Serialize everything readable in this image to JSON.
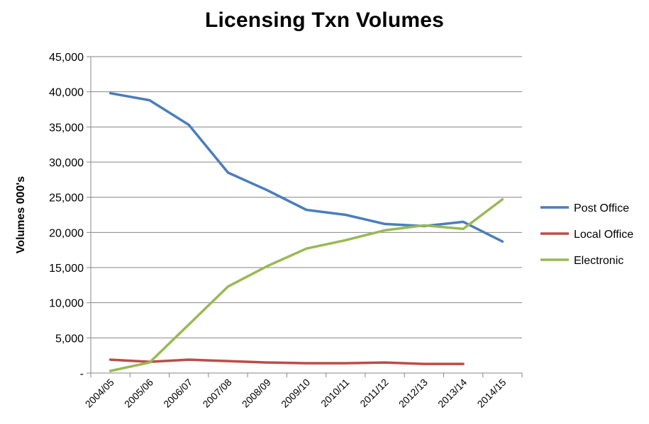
{
  "chart_data": {
    "type": "line",
    "title": "Licensing Txn Volumes",
    "xlabel": "",
    "ylabel": "Volumes 000's",
    "ylim": [
      0,
      45000
    ],
    "yticks": [
      {
        "value": 0,
        "label": "-"
      },
      {
        "value": 5000,
        "label": "5,000"
      },
      {
        "value": 10000,
        "label": "10,000"
      },
      {
        "value": 15000,
        "label": "15,000"
      },
      {
        "value": 20000,
        "label": "20,000"
      },
      {
        "value": 25000,
        "label": "25,000"
      },
      {
        "value": 30000,
        "label": "30,000"
      },
      {
        "value": 35000,
        "label": "35,000"
      },
      {
        "value": 40000,
        "label": "40,000"
      },
      {
        "value": 45000,
        "label": "45,000"
      }
    ],
    "categories": [
      "2004/05",
      "2005/06",
      "2006/07",
      "2007/08",
      "2008/09",
      "2009/10",
      "2010/11",
      "2011/12",
      "2012/13",
      "2013/14",
      "2014/15"
    ],
    "grid": true,
    "legend_position": "right",
    "series": [
      {
        "name": "Post Office",
        "color": "#4a7ebb",
        "values": [
          39800,
          38800,
          35300,
          28500,
          26000,
          23200,
          22500,
          21200,
          20900,
          21500,
          18700
        ]
      },
      {
        "name": "Local Office",
        "color": "#be4b48",
        "values": [
          1900,
          1600,
          1900,
          1700,
          1500,
          1400,
          1400,
          1500,
          1300,
          1300,
          null
        ]
      },
      {
        "name": "Electronic",
        "color": "#98b954",
        "values": [
          300,
          1500,
          6900,
          12300,
          15200,
          17700,
          18900,
          20300,
          21000,
          20500,
          24700
        ]
      }
    ]
  }
}
